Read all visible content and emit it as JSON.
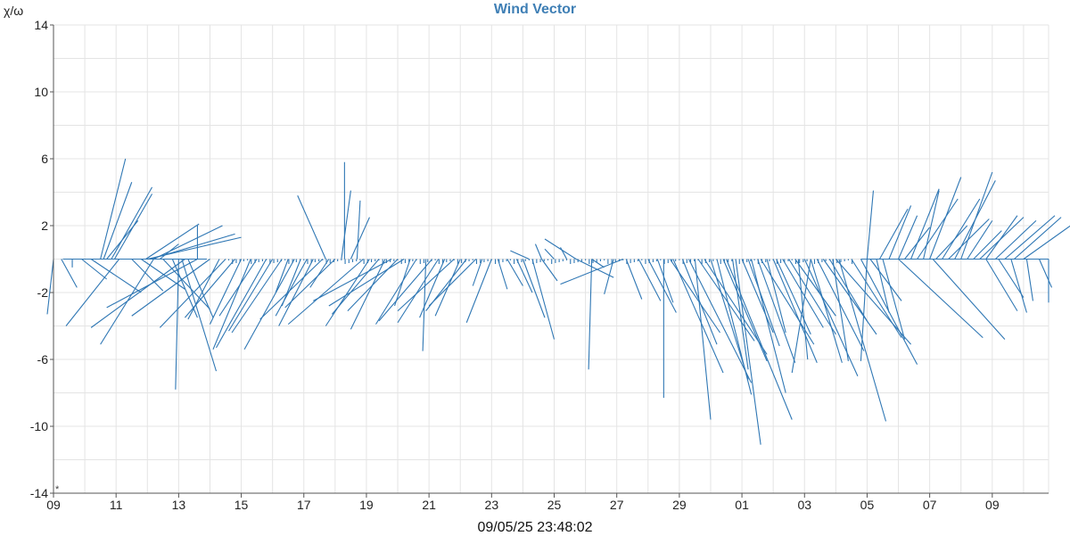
{
  "chart_data": {
    "type": "wind-vector",
    "title": "Wind Vector",
    "ylabel": "χ/ω",
    "ylim": [
      -14,
      14
    ],
    "yticks": [
      -14,
      -10,
      -6,
      -2,
      2,
      6,
      10,
      14
    ],
    "xlim": [
      0,
      31.8
    ],
    "xticks": [
      {
        "x": 0,
        "label": "09"
      },
      {
        "x": 2,
        "label": "11"
      },
      {
        "x": 4,
        "label": "13"
      },
      {
        "x": 6,
        "label": "15"
      },
      {
        "x": 8,
        "label": "17"
      },
      {
        "x": 10,
        "label": "19"
      },
      {
        "x": 12,
        "label": "21"
      },
      {
        "x": 14,
        "label": "23"
      },
      {
        "x": 16,
        "label": "25"
      },
      {
        "x": 18,
        "label": "27"
      },
      {
        "x": 20,
        "label": "29"
      },
      {
        "x": 22,
        "label": "01"
      },
      {
        "x": 24,
        "label": "03"
      },
      {
        "x": 26,
        "label": "05"
      },
      {
        "x": 28,
        "label": "07"
      },
      {
        "x": 30,
        "label": "09"
      }
    ],
    "corner_mark": "*",
    "grid": true,
    "color": "#2f77b4",
    "vectors": [
      [
        0.0,
        -0.2,
        -3.3
      ],
      [
        0.25,
        0.5,
        -1.7
      ],
      [
        0.6,
        0.0,
        -0.5
      ],
      [
        0.9,
        0.8,
        -1.2
      ],
      [
        1.2,
        1.6,
        -2.0
      ],
      [
        1.5,
        0.8,
        6.0
      ],
      [
        1.6,
        0.9,
        4.6
      ],
      [
        1.7,
        1.0,
        2.3
      ],
      [
        1.85,
        1.3,
        4.3
      ],
      [
        1.95,
        1.2,
        3.9
      ],
      [
        2.1,
        -1.7,
        -4.0
      ],
      [
        2.5,
        1.0,
        -1.9
      ],
      [
        2.8,
        1.4,
        -1.8
      ],
      [
        2.95,
        1.7,
        2.1
      ],
      [
        3.2,
        2.2,
        2.0
      ],
      [
        3.0,
        3.0,
        1.3
      ],
      [
        3.1,
        2.7,
        1.5
      ],
      [
        3.2,
        -1.7,
        -5.1
      ],
      [
        3.4,
        0.6,
        0.9
      ],
      [
        3.5,
        1.5,
        -3.0
      ],
      [
        3.8,
        0.8,
        -3.5
      ],
      [
        4.0,
        -0.1,
        -7.8
      ],
      [
        4.1,
        1.1,
        -6.7
      ],
      [
        4.3,
        0.8,
        -3.5
      ],
      [
        4.6,
        0.0,
        2.0
      ],
      [
        4.2,
        -3.0,
        -4.1
      ],
      [
        4.6,
        -2.9,
        -2.9
      ],
      [
        5.0,
        -2.5,
        -3.4
      ],
      [
        5.3,
        -1.0,
        -3.6
      ],
      [
        5.5,
        -2.1,
        -4.1
      ],
      [
        5.8,
        -1.6,
        -3.5
      ],
      [
        6.0,
        -1.0,
        -3.9
      ],
      [
        6.3,
        -1.2,
        -5.4
      ],
      [
        6.5,
        -1.2,
        -3.4
      ],
      [
        6.8,
        -1.6,
        -5.3
      ],
      [
        7.0,
        -1.4,
        -4.3
      ],
      [
        7.3,
        -1.6,
        -4.4
      ],
      [
        7.5,
        -0.4,
        -2.0
      ],
      [
        7.7,
        -1.6,
        -5.4
      ],
      [
        7.9,
        -0.6,
        -2.8
      ],
      [
        8.1,
        -1.0,
        -3.4
      ],
      [
        8.3,
        -1.1,
        -4.0
      ],
      [
        8.6,
        -2.0,
        -3.6
      ],
      [
        8.8,
        -0.6,
        -1.7
      ],
      [
        9.0,
        -1.6,
        -2.9
      ],
      [
        8.7,
        -0.9,
        3.8
      ],
      [
        9.2,
        0.3,
        4.1
      ],
      [
        9.3,
        0.0,
        5.8
      ],
      [
        9.5,
        0.6,
        2.5
      ],
      [
        9.7,
        0.1,
        3.5
      ],
      [
        9.9,
        -2.4,
        -3.9
      ],
      [
        10.1,
        -1.4,
        -4.0
      ],
      [
        10.4,
        -1.5,
        -3.3
      ],
      [
        10.6,
        -1.1,
        -4.2
      ],
      [
        10.8,
        -2.5,
        -2.5
      ],
      [
        11.0,
        -1.6,
        -3.1
      ],
      [
        11.2,
        -2.4,
        -2.8
      ],
      [
        11.4,
        -0.5,
        -2.8
      ],
      [
        11.6,
        -1.3,
        -3.9
      ],
      [
        11.9,
        -0.1,
        -5.5
      ],
      [
        12.1,
        -1.7,
        -3.7
      ],
      [
        12.3,
        -1.3,
        -3.8
      ],
      [
        12.5,
        -0.8,
        -3.5
      ],
      [
        12.8,
        -1.8,
        -3.1
      ],
      [
        13.0,
        -0.8,
        -3.4
      ],
      [
        13.2,
        -1.3,
        -3.1
      ],
      [
        13.5,
        -1.5,
        -2.8
      ],
      [
        13.7,
        -0.3,
        -1.6
      ],
      [
        14.0,
        -0.8,
        -3.8
      ],
      [
        14.2,
        0.3,
        -1.8
      ],
      [
        14.5,
        0.5,
        -1.6
      ],
      [
        14.8,
        0.5,
        -2.0
      ],
      [
        15.0,
        0.7,
        -3.5
      ],
      [
        15.3,
        0.7,
        -4.8
      ],
      [
        15.6,
        0.5,
        -1.3
      ],
      [
        15.2,
        -0.6,
        0.5
      ],
      [
        15.6,
        -0.2,
        0.9
      ],
      [
        16.0,
        -0.3,
        0.6
      ],
      [
        16.4,
        -0.2,
        0.7
      ],
      [
        16.7,
        -1.0,
        1.2
      ],
      [
        16.7,
        1.2,
        -1.1
      ],
      [
        17.2,
        0.4,
        -0.5
      ],
      [
        17.2,
        -0.1,
        -6.6
      ],
      [
        17.9,
        -0.3,
        -2.1
      ],
      [
        18.2,
        -2.0,
        -1.5
      ],
      [
        18.3,
        0.5,
        -2.4
      ],
      [
        18.7,
        0.7,
        -2.5
      ],
      [
        19.0,
        0.9,
        -3.2
      ],
      [
        19.3,
        0.5,
        -2.6
      ],
      [
        19.5,
        0.0,
        -8.3
      ],
      [
        19.7,
        1.6,
        -4.4
      ],
      [
        19.8,
        1.6,
        -6.8
      ],
      [
        20.1,
        1.1,
        -5.1
      ],
      [
        20.3,
        2.0,
        -7.4
      ],
      [
        20.5,
        0.5,
        -9.6
      ],
      [
        20.6,
        1.8,
        -4.9
      ],
      [
        20.8,
        2.0,
        -5.7
      ],
      [
        21.0,
        1.2,
        -7.2
      ],
      [
        21.2,
        1.1,
        -8.1
      ],
      [
        21.4,
        1.4,
        -6.1
      ],
      [
        21.5,
        2.1,
        -9.6
      ],
      [
        21.7,
        0.5,
        -6.6
      ],
      [
        21.8,
        0.8,
        -11.1
      ],
      [
        22.0,
        1.0,
        -4.4
      ],
      [
        22.2,
        1.0,
        -5.2
      ],
      [
        22.3,
        1.1,
        -8.0
      ],
      [
        22.5,
        1.2,
        -6.2
      ],
      [
        22.6,
        1.7,
        -5.1
      ],
      [
        22.8,
        0.6,
        -4.4
      ],
      [
        23.0,
        1.4,
        -6.2
      ],
      [
        23.1,
        1.1,
        -4.5
      ],
      [
        23.3,
        1.3,
        -4.1
      ],
      [
        23.5,
        1.5,
        -4.5
      ],
      [
        23.7,
        1.3,
        -3.4
      ],
      [
        23.8,
        0.3,
        -6.0
      ],
      [
        24.0,
        1.7,
        -7.0
      ],
      [
        24.2,
        1.0,
        -6.2
      ],
      [
        24.4,
        1.5,
        -5.5
      ],
      [
        24.6,
        1.7,
        -4.5
      ],
      [
        24.8,
        1.2,
        -3.7
      ],
      [
        25.0,
        2.4,
        -5.1
      ],
      [
        24.2,
        -0.6,
        -6.8
      ],
      [
        24.9,
        0.5,
        -6.1
      ],
      [
        25.1,
        1.5,
        -9.7
      ],
      [
        25.5,
        1.6,
        -4.7
      ],
      [
        25.8,
        1.8,
        -6.3
      ],
      [
        26.0,
        -0.2,
        -6.1
      ],
      [
        26.1,
        1.0,
        -2.5
      ],
      [
        26.3,
        0.4,
        -3.2
      ],
      [
        26.5,
        0.7,
        -4.8
      ],
      [
        26.0,
        0.2,
        4.1
      ],
      [
        26.4,
        0.9,
        3.0
      ],
      [
        26.7,
        0.7,
        3.2
      ],
      [
        27.0,
        0.6,
        2.6
      ],
      [
        27.2,
        0.8,
        1.9
      ],
      [
        27.4,
        0.9,
        4.2
      ],
      [
        27.6,
        1.3,
        3.6
      ],
      [
        27.8,
        0.5,
        4.1
      ],
      [
        28.0,
        1.0,
        4.9
      ],
      [
        28.2,
        1.0,
        2.0
      ],
      [
        28.4,
        1.2,
        3.6
      ],
      [
        28.6,
        1.3,
        2.4
      ],
      [
        28.8,
        1.3,
        4.7
      ],
      [
        29.0,
        1.0,
        5.2
      ],
      [
        29.2,
        0.8,
        2.3
      ],
      [
        29.4,
        0.9,
        1.7
      ],
      [
        29.6,
        1.4,
        2.5
      ],
      [
        29.8,
        1.0,
        2.6
      ],
      [
        30.1,
        1.3,
        2.3
      ],
      [
        30.4,
        1.6,
        2.6
      ],
      [
        30.7,
        1.5,
        2.5
      ],
      [
        31.0,
        1.8,
        2.4
      ],
      [
        27.0,
        2.7,
        -4.7
      ],
      [
        28.1,
        2.3,
        -4.8
      ],
      [
        29.8,
        1.0,
        -3.1
      ],
      [
        30.2,
        0.8,
        -2.3
      ],
      [
        30.6,
        0.5,
        -3.2
      ],
      [
        31.1,
        0.2,
        -2.5
      ],
      [
        31.5,
        0.4,
        -1.7
      ],
      [
        31.8,
        0.0,
        -2.6
      ]
    ]
  },
  "footer": {
    "timestamp": "09/05/25 23:48:02"
  }
}
